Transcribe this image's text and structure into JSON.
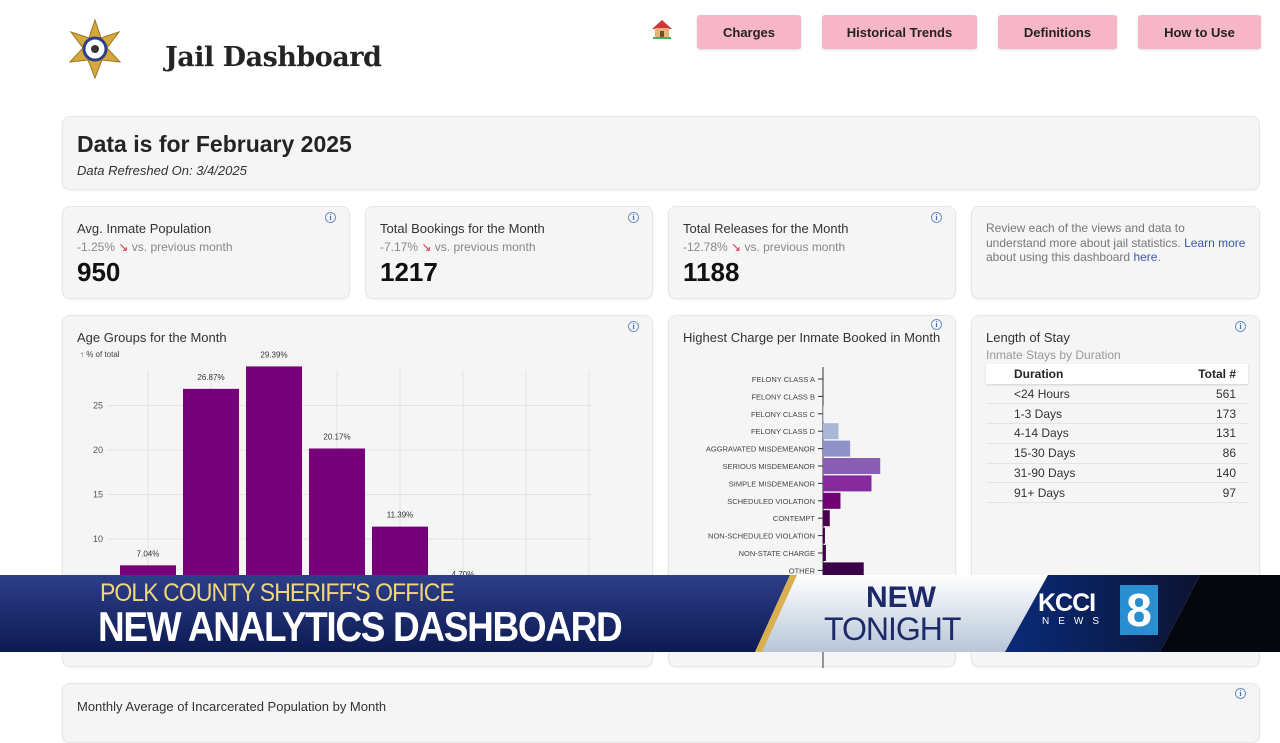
{
  "header": {
    "title": "Jail Dashboard",
    "nav": [
      {
        "label": "Charges"
      },
      {
        "label": "Historical Trends"
      },
      {
        "label": "Definitions"
      },
      {
        "label": "How to Use"
      }
    ],
    "home_icon": "house-icon",
    "logo": "sheriff-star-badge"
  },
  "period": {
    "title": "Data is for February 2025",
    "refreshed": "Data Refreshed On: 3/4/2025"
  },
  "kpis": [
    {
      "title": "Avg. Inmate Population",
      "delta": "-1.25%",
      "vs": "vs. previous month",
      "value": "950"
    },
    {
      "title": "Total Bookings for the Month",
      "delta": "-7.17%",
      "vs": "vs. previous month",
      "value": "1217"
    },
    {
      "title": "Total Releases for the Month",
      "delta": "-12.78%",
      "vs": "vs. previous month",
      "value": "1188"
    }
  ],
  "info_card": {
    "text1": "Review each of the views and data to understand more about jail statistics. ",
    "link1": "Learn more",
    "text2": " about using this dashboard ",
    "link2": "here",
    "text3": "."
  },
  "chart_data": [
    {
      "type": "bar",
      "title": "Age Groups for the Month",
      "ylabel": "↑ % of total",
      "yticks": [
        "10",
        "15",
        "20",
        "25"
      ],
      "values": [
        7.04,
        26.87,
        29.39,
        20.17,
        11.39,
        4.7
      ],
      "labels": [
        "7.04%",
        "26.87%",
        "29.39%",
        "20.17%",
        "11.39%",
        "4.70%"
      ],
      "ylim": [
        0,
        29
      ],
      "grid": true,
      "color": "#750079"
    },
    {
      "type": "bar",
      "orientation": "horizontal",
      "title": "Highest Charge per Inmate Booked in Month",
      "categories": [
        "FELONY CLASS A",
        "FELONY CLASS B",
        "FELONY CLASS C",
        "FELONY CLASS D",
        "AGGRAVATED MISDEMEANOR",
        "SERIOUS MISDEMEANOR",
        "SIMPLE MISDEMEANOR",
        "SCHEDULED VIOLATION",
        "CONTEMPT",
        "NON-SCHEDULED VIOLATION",
        "NON-STATE CHARGE",
        "OTHER"
      ],
      "values": [
        0,
        0,
        1,
        16,
        28,
        59,
        50,
        18,
        7,
        2,
        3,
        42
      ],
      "colors": [
        "#c5cde0",
        "#c5cde0",
        "#c5cde0",
        "#a9b8d8",
        "#8f91c9",
        "#8a5db5",
        "#862a9e",
        "#720075",
        "#4b0050",
        "#3f0045",
        "#3f0045",
        "#3c0048"
      ]
    }
  ],
  "length_of_stay": {
    "title": "Length of Stay",
    "subtitle": "Inmate Stays by Duration",
    "columns": [
      "Duration",
      "Total #"
    ],
    "rows": [
      [
        "<24 Hours",
        "561"
      ],
      [
        "1-3 Days",
        "173"
      ],
      [
        "4-14 Days",
        "131"
      ],
      [
        "15-30 Days",
        "86"
      ],
      [
        "31-90 Days",
        "140"
      ],
      [
        "91+ Days",
        "97"
      ]
    ]
  },
  "monthly": {
    "title": "Monthly Average of Incarcerated Population by Month"
  },
  "broadcast": {
    "kicker": "POLK COUNTY SHERIFF'S OFFICE",
    "headline": "NEW ANALYTICS DASHBOARD",
    "tag1": "NEW",
    "tag2": "TONIGHT",
    "station": "KCCI",
    "station_sub": "NEWS",
    "channel": "8"
  }
}
